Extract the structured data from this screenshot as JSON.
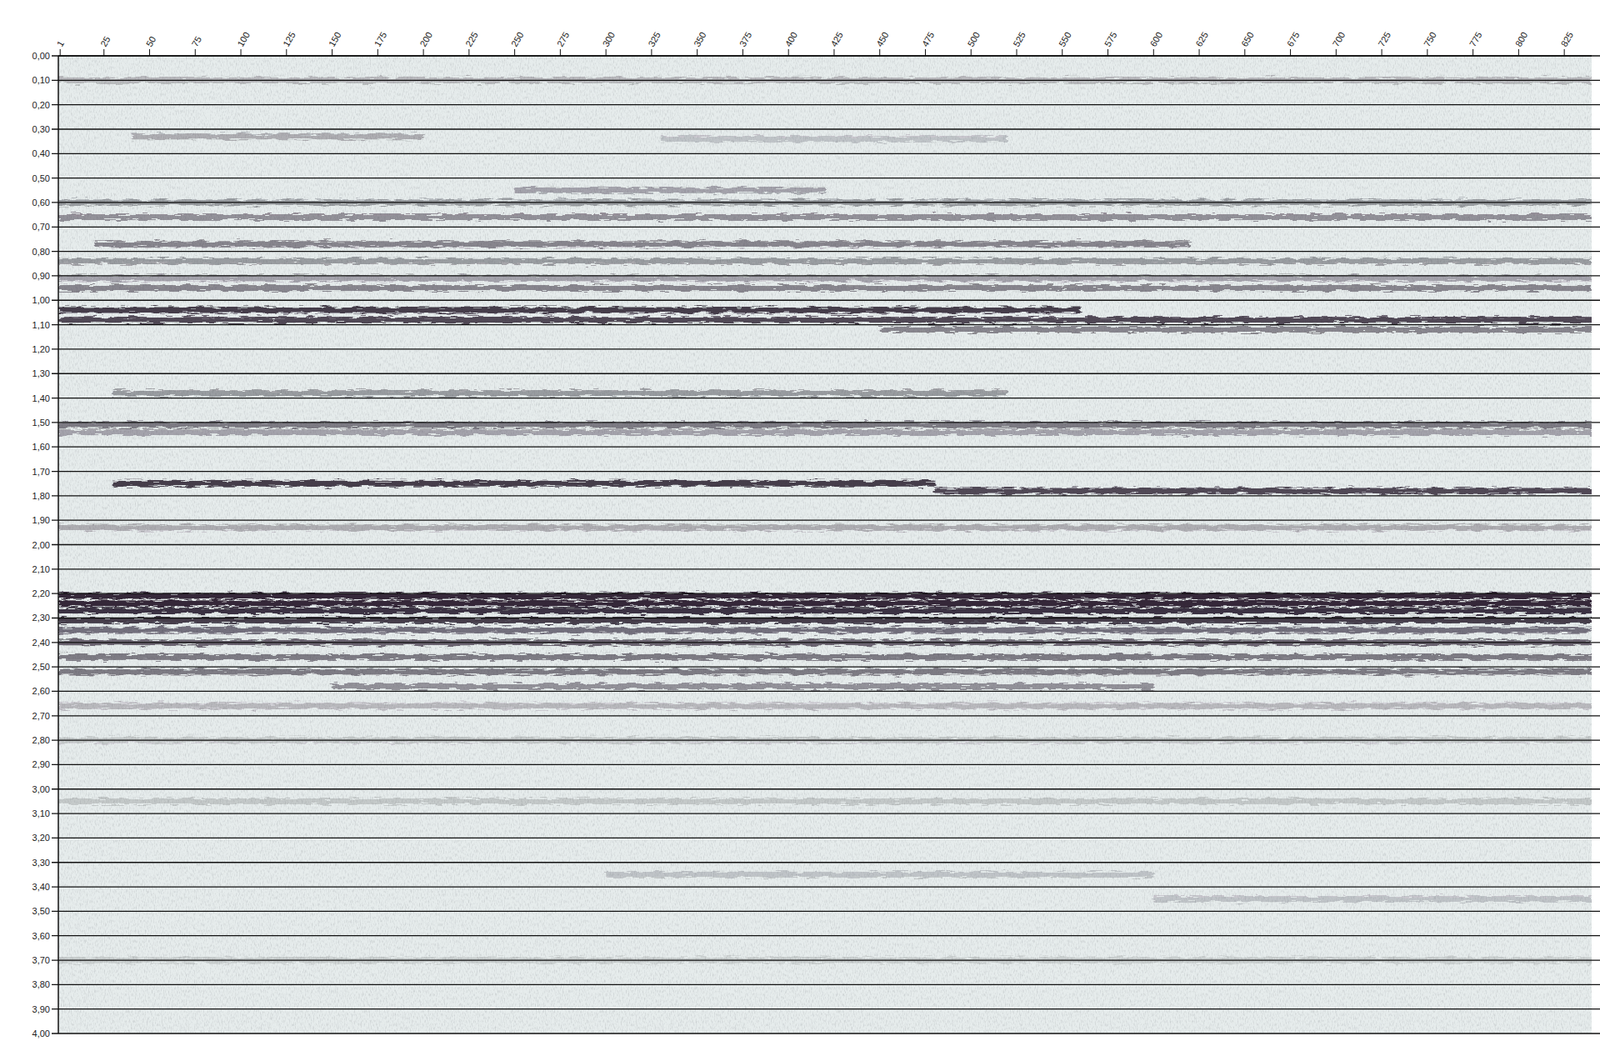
{
  "chart_data": {
    "type": "seismic",
    "xlim": [
      0,
      840
    ],
    "ylim": [
      0,
      4.0
    ],
    "xticks": [
      1,
      25,
      50,
      75,
      100,
      125,
      150,
      175,
      200,
      225,
      250,
      275,
      300,
      325,
      350,
      375,
      400,
      425,
      450,
      475,
      500,
      525,
      550,
      575,
      600,
      625,
      650,
      675,
      700,
      725,
      750,
      775,
      800,
      825
    ],
    "yticks": [
      {
        "value": 0.0,
        "label": "0,00"
      },
      {
        "value": 0.1,
        "label": "0,10"
      },
      {
        "value": 0.2,
        "label": "0,20"
      },
      {
        "value": 0.3,
        "label": "0,30"
      },
      {
        "value": 0.4,
        "label": "0,40"
      },
      {
        "value": 0.5,
        "label": "0,50"
      },
      {
        "value": 0.6,
        "label": "0,60"
      },
      {
        "value": 0.7,
        "label": "0,70"
      },
      {
        "value": 0.8,
        "label": "0,80"
      },
      {
        "value": 0.9,
        "label": "0,90"
      },
      {
        "value": 1.0,
        "label": "1,00"
      },
      {
        "value": 1.1,
        "label": "1,10"
      },
      {
        "value": 1.2,
        "label": "1,20"
      },
      {
        "value": 1.3,
        "label": "1,30"
      },
      {
        "value": 1.4,
        "label": "1,40"
      },
      {
        "value": 1.5,
        "label": "1,50"
      },
      {
        "value": 1.6,
        "label": "1,60"
      },
      {
        "value": 1.7,
        "label": "1,70"
      },
      {
        "value": 1.8,
        "label": "1,80"
      },
      {
        "value": 1.9,
        "label": "1,90"
      },
      {
        "value": 2.0,
        "label": "2,00"
      },
      {
        "value": 2.1,
        "label": "2,10"
      },
      {
        "value": 2.2,
        "label": "2,20"
      },
      {
        "value": 2.3,
        "label": "2,30"
      },
      {
        "value": 2.4,
        "label": "2,40"
      },
      {
        "value": 2.5,
        "label": "2,50"
      },
      {
        "value": 2.6,
        "label": "2,60"
      },
      {
        "value": 2.7,
        "label": "2,70"
      },
      {
        "value": 2.8,
        "label": "2,80"
      },
      {
        "value": 2.9,
        "label": "2,90"
      },
      {
        "value": 3.0,
        "label": "3,00"
      },
      {
        "value": 3.1,
        "label": "3,10"
      },
      {
        "value": 3.2,
        "label": "3,20"
      },
      {
        "value": 3.3,
        "label": "3,30"
      },
      {
        "value": 3.4,
        "label": "3,40"
      },
      {
        "value": 3.5,
        "label": "3,50"
      },
      {
        "value": 3.6,
        "label": "3,60"
      },
      {
        "value": 3.7,
        "label": "3,70"
      },
      {
        "value": 3.8,
        "label": "3,80"
      },
      {
        "value": 3.9,
        "label": "3,90"
      },
      {
        "value": 4.0,
        "label": "4,00"
      }
    ],
    "grid": true,
    "color": "#2a2030",
    "events": [
      {
        "time": 0.1,
        "x_start": 0,
        "x_end": 840,
        "amplitude": 0.25
      },
      {
        "time": 0.33,
        "x_start": 40,
        "x_end": 200,
        "amplitude": 0.3
      },
      {
        "time": 0.34,
        "x_start": 330,
        "x_end": 520,
        "amplitude": 0.2
      },
      {
        "time": 0.55,
        "x_start": 250,
        "x_end": 420,
        "amplitude": 0.35
      },
      {
        "time": 0.6,
        "x_start": 0,
        "x_end": 840,
        "amplitude": 0.4
      },
      {
        "time": 0.66,
        "x_start": 0,
        "x_end": 840,
        "amplitude": 0.45
      },
      {
        "time": 0.77,
        "x_start": 20,
        "x_end": 620,
        "amplitude": 0.5
      },
      {
        "time": 0.84,
        "x_start": 0,
        "x_end": 840,
        "amplitude": 0.4
      },
      {
        "time": 0.91,
        "x_start": 0,
        "x_end": 840,
        "amplitude": 0.35
      },
      {
        "time": 0.95,
        "x_start": 0,
        "x_end": 840,
        "amplitude": 0.5
      },
      {
        "time": 1.04,
        "x_start": 0,
        "x_end": 560,
        "amplitude": 0.85
      },
      {
        "time": 1.08,
        "x_start": 0,
        "x_end": 840,
        "amplitude": 0.8
      },
      {
        "time": 1.12,
        "x_start": 450,
        "x_end": 840,
        "amplitude": 0.5
      },
      {
        "time": 1.38,
        "x_start": 30,
        "x_end": 520,
        "amplitude": 0.4
      },
      {
        "time": 1.51,
        "x_start": 0,
        "x_end": 840,
        "amplitude": 0.55
      },
      {
        "time": 1.54,
        "x_start": 0,
        "x_end": 840,
        "amplitude": 0.35
      },
      {
        "time": 1.75,
        "x_start": 30,
        "x_end": 480,
        "amplitude": 0.85
      },
      {
        "time": 1.78,
        "x_start": 480,
        "x_end": 840,
        "amplitude": 0.8
      },
      {
        "time": 1.93,
        "x_start": 0,
        "x_end": 840,
        "amplitude": 0.3
      },
      {
        "time": 2.21,
        "x_start": 0,
        "x_end": 840,
        "amplitude": 0.95
      },
      {
        "time": 2.24,
        "x_start": 0,
        "x_end": 840,
        "amplitude": 0.95
      },
      {
        "time": 2.27,
        "x_start": 0,
        "x_end": 840,
        "amplitude": 0.9
      },
      {
        "time": 2.31,
        "x_start": 0,
        "x_end": 840,
        "amplitude": 0.85
      },
      {
        "time": 2.35,
        "x_start": 0,
        "x_end": 840,
        "amplitude": 0.6
      },
      {
        "time": 2.4,
        "x_start": 0,
        "x_end": 840,
        "amplitude": 0.65
      },
      {
        "time": 2.46,
        "x_start": 0,
        "x_end": 840,
        "amplitude": 0.55
      },
      {
        "time": 2.52,
        "x_start": 0,
        "x_end": 840,
        "amplitude": 0.55
      },
      {
        "time": 2.58,
        "x_start": 150,
        "x_end": 600,
        "amplitude": 0.45
      },
      {
        "time": 2.66,
        "x_start": 0,
        "x_end": 840,
        "amplitude": 0.25
      },
      {
        "time": 2.8,
        "x_start": 0,
        "x_end": 840,
        "amplitude": 0.18
      },
      {
        "time": 3.05,
        "x_start": 0,
        "x_end": 840,
        "amplitude": 0.18
      },
      {
        "time": 3.35,
        "x_start": 300,
        "x_end": 600,
        "amplitude": 0.2
      },
      {
        "time": 3.45,
        "x_start": 600,
        "x_end": 840,
        "amplitude": 0.2
      },
      {
        "time": 3.7,
        "x_start": 0,
        "x_end": 840,
        "amplitude": 0.15
      }
    ]
  }
}
